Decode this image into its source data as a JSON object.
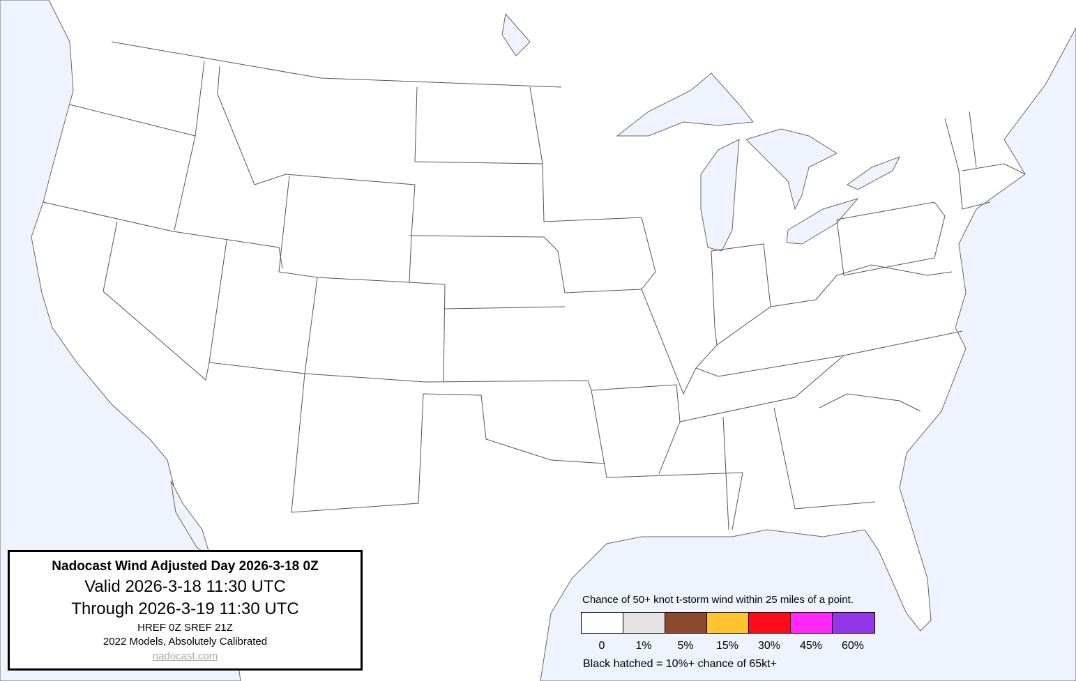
{
  "title_box": {
    "title": "Nadocast Wind Adjusted Day 2026-3-18 0Z",
    "valid": "Valid 2026-3-18 11:30 UTC",
    "through": "Through 2026-3-19 11:30 UTC",
    "models": "HREF 0Z SREF 21Z",
    "calibration": "2022 Models, Absolutely Calibrated",
    "link": "nadocast.com"
  },
  "legend": {
    "title": "Chance of 50+ knot t-storm wind within 25 miles of a point.",
    "bins": [
      {
        "label": "0",
        "color": "#ffffff"
      },
      {
        "label": "1%",
        "color": "#e4e4e4"
      },
      {
        "label": "5%",
        "color": "#8b4a2b"
      },
      {
        "label": "15%",
        "color": "#ffc42e"
      },
      {
        "label": "30%",
        "color": "#ff0c1c"
      },
      {
        "label": "45%",
        "color": "#ff28f8"
      },
      {
        "label": "60%",
        "color": "#9237e8"
      }
    ],
    "note": "Black hatched = 10%+ chance of 65kt+"
  },
  "colors": {
    "water": "#eef3fd",
    "land": "#ffffff",
    "borders": "#555555"
  }
}
